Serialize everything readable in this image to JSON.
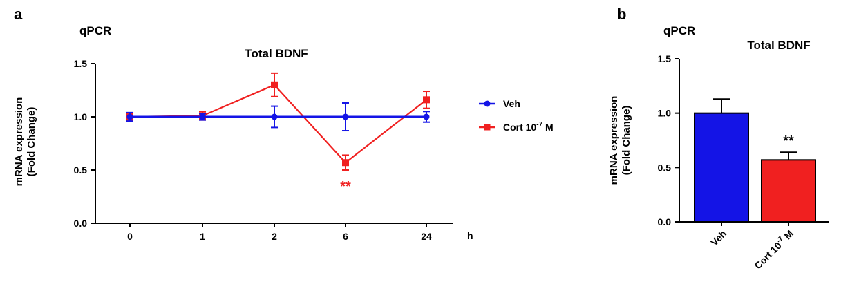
{
  "panels": {
    "a": {
      "letter": "a",
      "method": "qPCR"
    },
    "b": {
      "letter": "b",
      "method": "qPCR"
    }
  },
  "colors": {
    "veh": "#1414e6",
    "cort": "#f02020",
    "axis": "#000000",
    "sig_a": "#f02020",
    "sig_b": "#000000"
  },
  "chart_data": [
    {
      "type": "line",
      "title": "Total BDNF",
      "xlabel": "h",
      "ylabel_line1": "mRNA expression",
      "ylabel_line2": "(Fold Change)",
      "categories": [
        "0",
        "1",
        "2",
        "6",
        "24"
      ],
      "ylim": [
        0,
        1.5
      ],
      "yticks": [
        "0.0",
        "0.5",
        "1.0",
        "1.5"
      ],
      "legend_position": "right",
      "series": [
        {
          "name": "Veh",
          "values": [
            1.0,
            1.0,
            1.0,
            1.0,
            1.0
          ],
          "errors": [
            0.04,
            0.03,
            0.1,
            0.13,
            0.05
          ]
        },
        {
          "name": "Cort 10",
          "name_sup": "-7",
          "name_suffix": " M",
          "values": [
            1.0,
            1.01,
            1.3,
            0.57,
            1.16
          ],
          "errors": [
            0.03,
            0.04,
            0.11,
            0.07,
            0.08
          ]
        }
      ],
      "annotation": {
        "text": "**",
        "category": "6"
      }
    },
    {
      "type": "bar",
      "title": "Total BDNF",
      "ylabel_line1": "mRNA expression",
      "ylabel_line2": "(Fold Change)",
      "categories": [
        {
          "label": "Veh"
        },
        {
          "label": "Cort 10",
          "sup": "-7",
          "suffix": " M"
        }
      ],
      "values": [
        1.0,
        0.57
      ],
      "errors": [
        0.13,
        0.07
      ],
      "ylim": [
        0,
        1.5
      ],
      "yticks": [
        "0.0",
        "0.5",
        "1.0",
        "1.5"
      ],
      "annotation": {
        "text": "**",
        "bar_index": 1
      }
    }
  ]
}
